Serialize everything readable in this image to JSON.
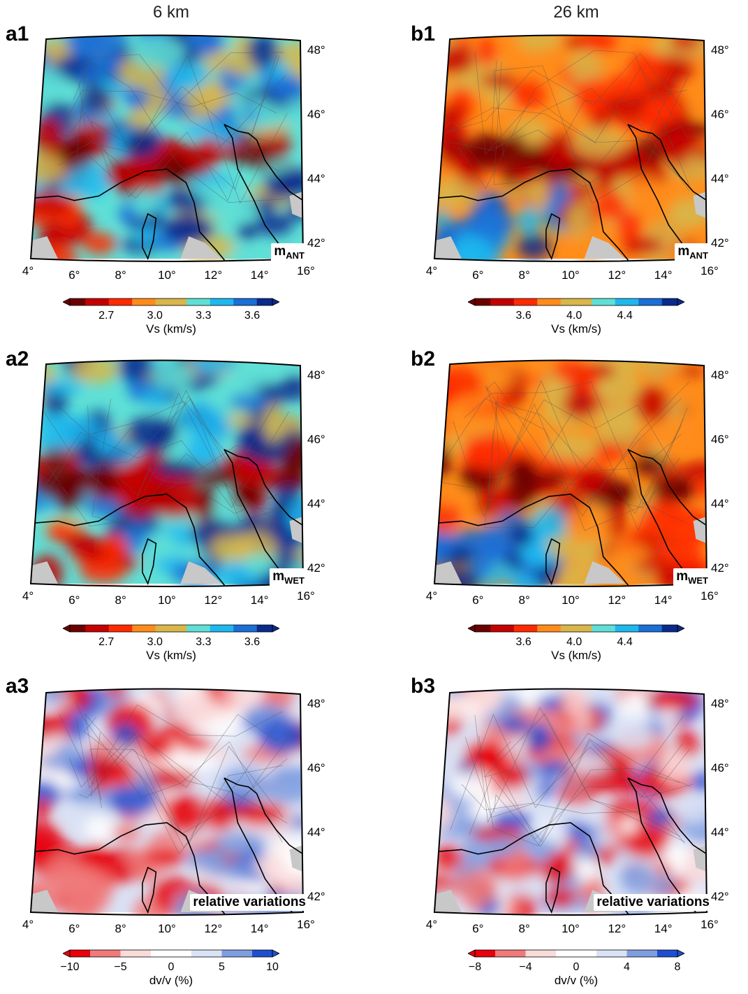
{
  "columns": {
    "left": "6 km",
    "right": "26 km"
  },
  "lon_ticks": [
    "4°",
    "6°",
    "8°",
    "10°",
    "12°",
    "14°",
    "16°"
  ],
  "lat_ticks": [
    "48°",
    "46°",
    "44°",
    "42°"
  ],
  "panels": [
    {
      "id": "a1",
      "label": "a1",
      "badge": "m",
      "badge_sub": "ANT",
      "scheme": "vs"
    },
    {
      "id": "b1",
      "label": "b1",
      "badge": "m",
      "badge_sub": "ANT",
      "scheme": "vs"
    },
    {
      "id": "a2",
      "label": "a2",
      "badge": "m",
      "badge_sub": "WET",
      "scheme": "vs"
    },
    {
      "id": "b2",
      "label": "b2",
      "badge": "m",
      "badge_sub": "WET",
      "scheme": "vs"
    },
    {
      "id": "a3",
      "label": "a3",
      "badge": "relative variations",
      "badge_sub": "",
      "scheme": "dv"
    },
    {
      "id": "b3",
      "label": "b3",
      "badge": "relative variations",
      "badge_sub": "",
      "scheme": "dv"
    }
  ],
  "colorbars": [
    {
      "id": "cb-a1",
      "ticks": [
        "2.7",
        "3.0",
        "3.3",
        "3.6"
      ],
      "label": "Vs (km/s)",
      "scheme": "vs"
    },
    {
      "id": "cb-b1",
      "ticks": [
        "3.6",
        "4.0",
        "4.4"
      ],
      "label": "Vs (km/s)",
      "scheme": "vs"
    },
    {
      "id": "cb-a2",
      "ticks": [
        "2.7",
        "3.0",
        "3.3",
        "3.6"
      ],
      "label": "Vs (km/s)",
      "scheme": "vs"
    },
    {
      "id": "cb-b2",
      "ticks": [
        "3.6",
        "4.0",
        "4.4"
      ],
      "label": "Vs (km/s)",
      "scheme": "vs"
    },
    {
      "id": "cb-a3",
      "ticks": [
        "−10",
        "−5",
        "0",
        "5",
        "10"
      ],
      "label": "dv/v (%)",
      "scheme": "dv"
    },
    {
      "id": "cb-b3",
      "ticks": [
        "−8",
        "−4",
        "0",
        "4",
        "8"
      ],
      "label": "dv/v (%)",
      "scheme": "dv"
    }
  ],
  "colors": {
    "vs": [
      "#6b0000",
      "#c40000",
      "#ff2a00",
      "#ff8c1a",
      "#d8b64a",
      "#5fe0d6",
      "#1fb8ee",
      "#1b6fd6",
      "#0a2a8c"
    ],
    "dv": [
      "#e8000b",
      "#f07a7a",
      "#fbdada",
      "#ffffff",
      "#dae2f5",
      "#7f9ee0",
      "#1f4fd0"
    ],
    "land_nodata": "#c8c8c8"
  }
}
